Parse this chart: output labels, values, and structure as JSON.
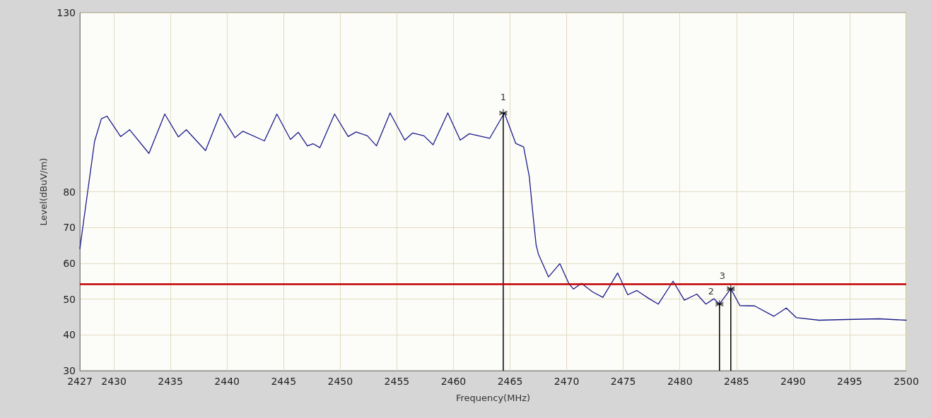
{
  "chart_data": {
    "type": "line",
    "xlabel": "Frequency(MHz)",
    "ylabel": "Level(dBuV/m)",
    "xlim": [
      2427,
      2500
    ],
    "xticks": [
      2427,
      2430,
      2435,
      2440,
      2445,
      2450,
      2455,
      2460,
      2465,
      2470,
      2475,
      2480,
      2485,
      2490,
      2495,
      2500
    ],
    "ylim": [
      30,
      130
    ],
    "yticks": [
      30,
      40,
      50,
      60,
      70,
      80,
      130
    ],
    "grid": true,
    "marker": "none",
    "line_style": "solid",
    "series": [
      {
        "color": "#1c1c8c",
        "x": [
          2427,
          2427.7,
          2428.3,
          2428.9,
          2429.4,
          2430.6,
          2431.4,
          2433.1,
          2434.5,
          2435.7,
          2436.4,
          2438.1,
          2439.4,
          2440.7,
          2441.4,
          2443.3,
          2444.4,
          2445.6,
          2446.3,
          2447.1,
          2447.6,
          2448.2,
          2449.5,
          2450.7,
          2451.4,
          2452.4,
          2453.2,
          2454.4,
          2455.7,
          2456.4,
          2457.4,
          2458.2,
          2459.5,
          2460.6,
          2461.4,
          2463.2,
          2464.5,
          2465.5,
          2466.2,
          2466.7,
          2467.0,
          2467.3,
          2467.5,
          2468.4,
          2469.4,
          2470.2,
          2470.6,
          2471.3,
          2472.3,
          2473.2,
          2474.5,
          2475.4,
          2476.2,
          2477.3,
          2478.1,
          2479.4,
          2480.4,
          2481.5,
          2482.3,
          2483.0,
          2483.5,
          2484.5,
          2485.3,
          2486.6,
          2488.3,
          2489.4,
          2490.3,
          2492.3,
          2494.7,
          2497.6,
          2500
        ],
        "values": [
          64.1,
          80.3,
          94.1,
          100.4,
          101.1,
          95.4,
          97.3,
          90.7,
          101.7,
          95.3,
          97.3,
          91.5,
          101.8,
          95.1,
          96.9,
          94.2,
          101.7,
          94.6,
          96.6,
          92.8,
          93.4,
          92.3,
          101.7,
          95.4,
          96.7,
          95.6,
          92.8,
          102.0,
          94.4,
          96.4,
          95.6,
          93.1,
          102.0,
          94.4,
          96.2,
          94.9,
          102.0,
          93.5,
          92.5,
          84.2,
          74.4,
          65.2,
          62.6,
          56.2,
          59.9,
          54.3,
          52.8,
          54.4,
          52.0,
          50.5,
          57.3,
          51.2,
          52.4,
          50.1,
          48.6,
          55.0,
          49.7,
          51.4,
          48.6,
          50.1,
          48.6,
          52.9,
          48.2,
          48.1,
          45.2,
          47.5,
          44.8,
          44.1,
          44.3,
          44.5,
          44.1
        ]
      },
      {
        "type": "lollipop",
        "color": "#000000",
        "marker": "cross",
        "x": [
          2464.4,
          2483.5,
          2484.5
        ],
        "values": [
          102.0,
          48.6,
          52.9
        ]
      }
    ],
    "annotations": [
      {
        "text": "1",
        "x": 2464.4,
        "y": 102.0
      },
      {
        "text": "2",
        "x": 2483.5,
        "y": 48.6
      },
      {
        "text": "3",
        "x": 2484.5,
        "y": 52.9
      }
    ],
    "ref_lines": [
      {
        "axis": "y",
        "value": 54.3,
        "color": "#c00000",
        "line_style": "solid"
      }
    ]
  }
}
